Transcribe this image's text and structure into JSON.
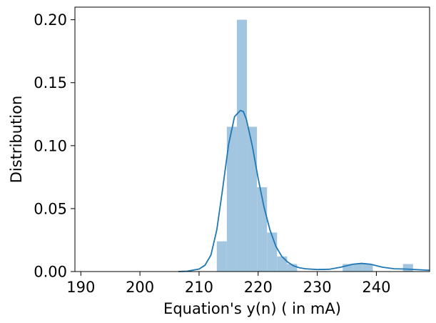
{
  "chart_data": {
    "type": "histogram",
    "xlabel": "Equation's y(n) ( in mA)",
    "ylabel": "Distribution",
    "xlim": [
      189,
      249
    ],
    "ylim": [
      0,
      0.21
    ],
    "xticks": [
      190,
      200,
      210,
      220,
      230,
      240
    ],
    "yticks": [
      0.0,
      0.05,
      0.1,
      0.15,
      0.2
    ],
    "ytick_labels": [
      "0.00",
      "0.05",
      "0.10",
      "0.15",
      "0.20"
    ],
    "grid": false,
    "bar_color": "#a3c6e0",
    "line_color": "#1f77b4",
    "bins": [
      {
        "x0": 213.0,
        "x1": 214.7,
        "value": 0.024
      },
      {
        "x0": 214.7,
        "x1": 216.4,
        "value": 0.115
      },
      {
        "x0": 216.4,
        "x1": 218.1,
        "value": 0.2
      },
      {
        "x0": 218.1,
        "x1": 219.8,
        "value": 0.115
      },
      {
        "x0": 219.8,
        "x1": 221.5,
        "value": 0.067
      },
      {
        "x0": 221.5,
        "x1": 223.2,
        "value": 0.031
      },
      {
        "x0": 223.2,
        "x1": 224.9,
        "value": 0.012
      },
      {
        "x0": 224.9,
        "x1": 226.6,
        "value": 0.006
      },
      {
        "x0": 234.3,
        "x1": 236.0,
        "value": 0.006
      },
      {
        "x0": 236.0,
        "x1": 237.7,
        "value": 0.006
      },
      {
        "x0": 237.7,
        "x1": 239.4,
        "value": 0.006
      },
      {
        "x0": 244.5,
        "x1": 246.2,
        "value": 0.006
      }
    ],
    "kde": {
      "x": [
        206.5,
        208,
        210,
        211,
        212,
        213,
        214,
        215,
        216,
        217,
        217.5,
        218,
        219,
        220,
        221,
        222,
        223,
        224,
        225,
        226,
        227,
        228,
        230,
        232,
        234,
        236,
        237.5,
        239,
        241,
        243,
        245,
        247,
        249
      ],
      "y": [
        0.0,
        0.0003,
        0.002,
        0.005,
        0.013,
        0.033,
        0.066,
        0.101,
        0.123,
        0.128,
        0.127,
        0.121,
        0.1,
        0.074,
        0.051,
        0.033,
        0.02,
        0.012,
        0.0075,
        0.0045,
        0.003,
        0.0022,
        0.0016,
        0.0018,
        0.0035,
        0.0058,
        0.0065,
        0.0058,
        0.0035,
        0.0022,
        0.002,
        0.0015,
        0.001
      ]
    }
  }
}
